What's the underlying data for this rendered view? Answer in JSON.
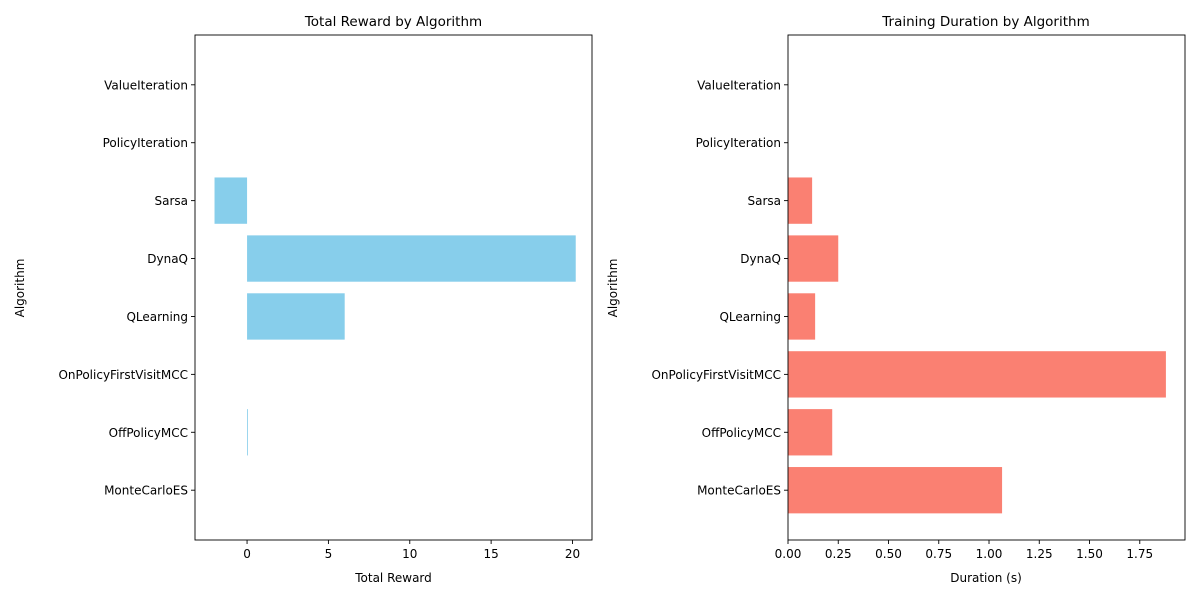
{
  "chart_data": [
    {
      "type": "bar",
      "orientation": "horizontal",
      "title": "Total Reward by Algorithm",
      "xlabel": "Total Reward",
      "ylabel": "Algorithm",
      "categories": [
        "MonteCarloES",
        "OffPolicyMCC",
        "OnPolicyFirstVisitMCC",
        "QLearning",
        "DynaQ",
        "Sarsa",
        "PolicyIteration",
        "ValueIteration"
      ],
      "values": [
        0,
        0.05,
        0,
        6.0,
        20.2,
        -2.0,
        0,
        0
      ],
      "xlim": [
        -3.2,
        21.2
      ],
      "xticks": [
        0,
        5,
        10,
        15,
        20
      ],
      "xtick_labels": [
        "0",
        "5",
        "10",
        "15",
        "20"
      ],
      "color": "#87ceeb",
      "grid": false
    },
    {
      "type": "bar",
      "orientation": "horizontal",
      "title": "Training Duration by Algorithm",
      "xlabel": "Duration (s)",
      "ylabel": "Algorithm",
      "categories": [
        "MonteCarloES",
        "OffPolicyMCC",
        "OnPolicyFirstVisitMCC",
        "QLearning",
        "DynaQ",
        "Sarsa",
        "PolicyIteration",
        "ValueIteration"
      ],
      "values": [
        1.065,
        0.22,
        1.88,
        0.135,
        0.25,
        0.12,
        0,
        0
      ],
      "xlim": [
        0,
        1.975
      ],
      "xticks": [
        0,
        0.25,
        0.5,
        0.75,
        1.0,
        1.25,
        1.5,
        1.75
      ],
      "xtick_labels": [
        "0.00",
        "0.25",
        "0.50",
        "0.75",
        "1.00",
        "1.25",
        "1.50",
        "1.75"
      ],
      "color": "#fa8072",
      "grid": false
    }
  ]
}
